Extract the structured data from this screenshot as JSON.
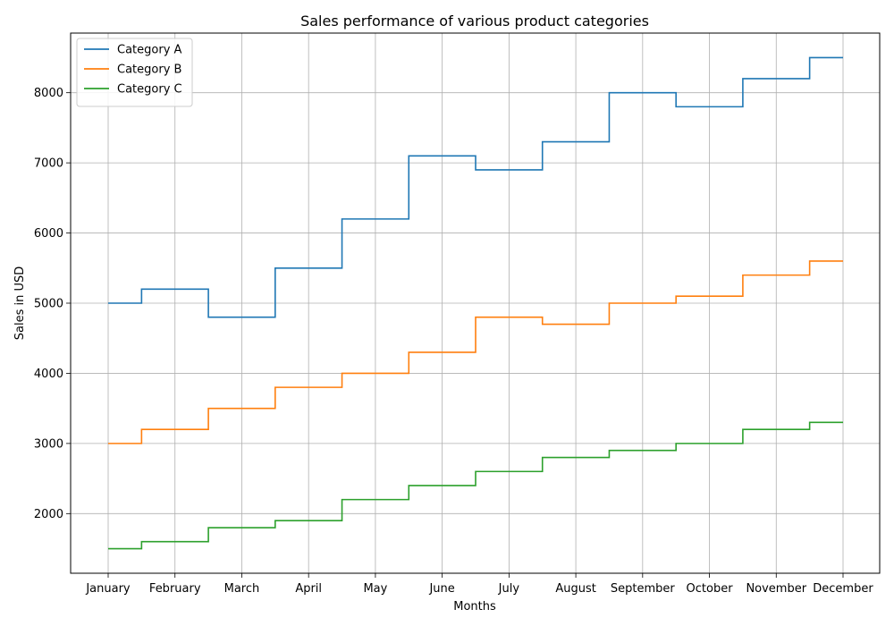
{
  "chart_data": {
    "type": "line",
    "step": "mid",
    "title": "Sales performance of various product categories",
    "xlabel": "Months",
    "ylabel": "Sales in USD",
    "categories": [
      "January",
      "February",
      "March",
      "April",
      "May",
      "June",
      "July",
      "August",
      "September",
      "October",
      "November",
      "December"
    ],
    "yticks": [
      2000,
      3000,
      4000,
      5000,
      6000,
      7000,
      8000
    ],
    "ylim": [
      1150,
      8850
    ],
    "grid": true,
    "legend_position": "top-left",
    "series": [
      {
        "name": "Category A",
        "color": "#1f77b4",
        "values": [
          5000,
          5200,
          4800,
          5500,
          6200,
          7100,
          6900,
          7300,
          8000,
          7800,
          8200,
          8500
        ]
      },
      {
        "name": "Category B",
        "color": "#ff7f0e",
        "values": [
          3000,
          3200,
          3500,
          3800,
          4000,
          4300,
          4800,
          4700,
          5000,
          5100,
          5400,
          5600
        ]
      },
      {
        "name": "Category C",
        "color": "#2ca02c",
        "values": [
          1500,
          1600,
          1800,
          1900,
          2200,
          2400,
          2600,
          2800,
          2900,
          3000,
          3200,
          3300
        ]
      }
    ]
  }
}
